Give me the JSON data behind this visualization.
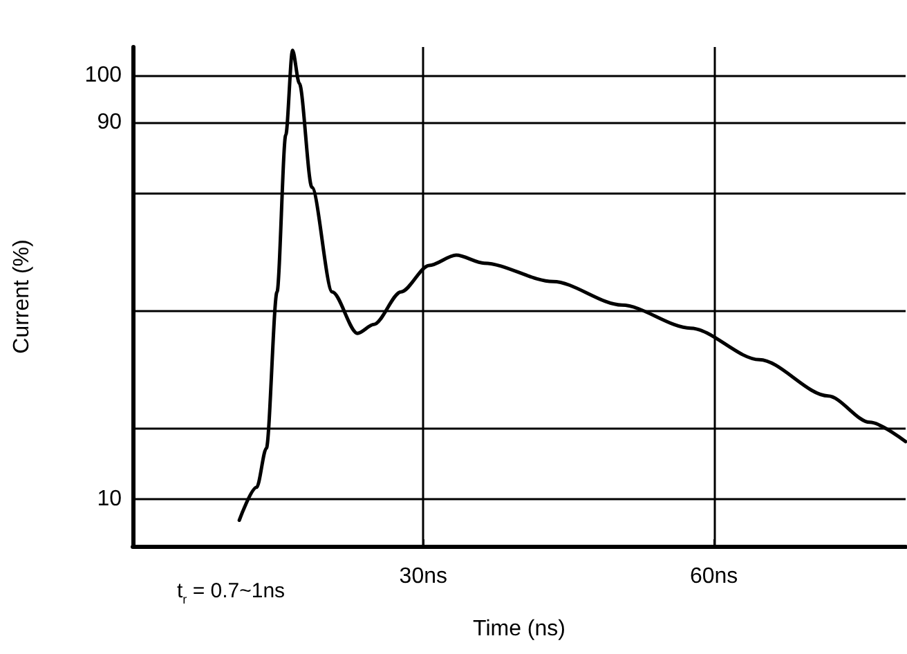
{
  "chart_data": {
    "type": "line",
    "xlabel": "Time (ns)",
    "ylabel": "Current (%)",
    "x": [
      11.0,
      12.8,
      13.8,
      14.9,
      15.8,
      16.5,
      17.2,
      18.5,
      20.6,
      23.2,
      24.9,
      27.7,
      30.6,
      33.4,
      36.3,
      43.4,
      50.5,
      57.6,
      64.7,
      71.8,
      76.1,
      79.8
    ],
    "series": [
      {
        "color": "#000000",
        "values": [
          5.5,
          12.5,
          20.8,
          54,
          87.3,
          105.3,
          98.3,
          76.2,
          54,
          45.2,
          47.1,
          54,
          59.6,
          61.8,
          60.1,
          56.2,
          51.2,
          46.3,
          39.6,
          31.9,
          26.3,
          22.2
        ]
      }
    ],
    "xlim": [
      0,
      79.8
    ],
    "ylim": [
      0,
      106
    ],
    "xticks": [
      {
        "value": 30,
        "label": "30ns"
      },
      {
        "value": 60,
        "label": "60ns"
      }
    ],
    "yticks": [
      10,
      {
        "value": 25,
        "label": null
      },
      {
        "value": 50,
        "label": null
      },
      {
        "value": 75,
        "label": null
      },
      90,
      100
    ],
    "grid": true,
    "marker": "none",
    "line_style": "solid",
    "annotations": [
      "t$_{r}$ = 0.7~1ns"
    ]
  }
}
